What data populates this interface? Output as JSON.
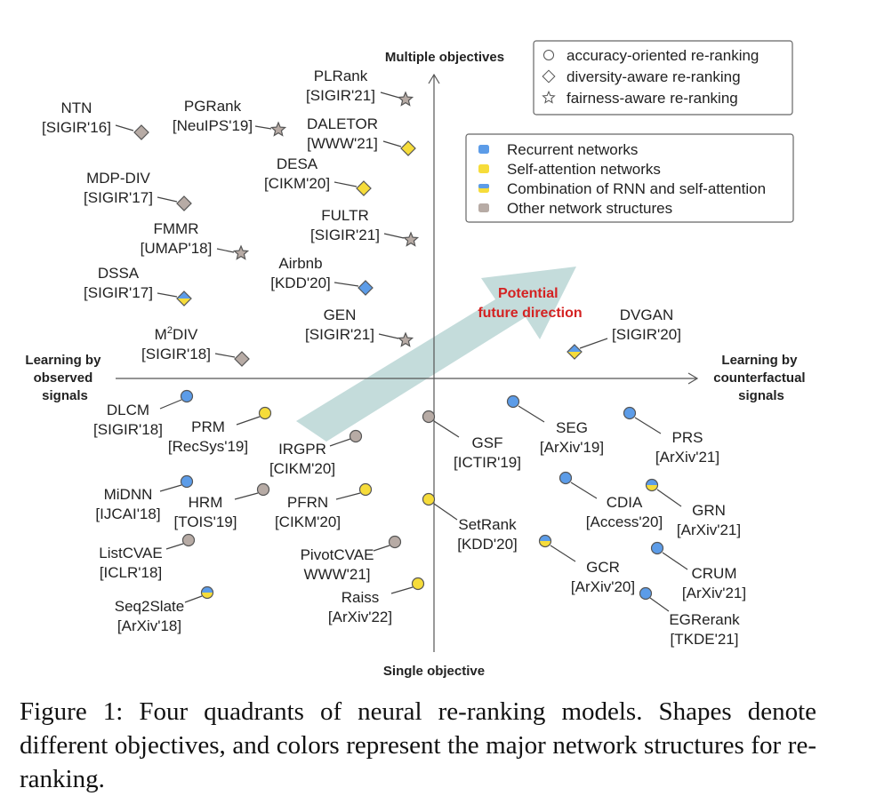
{
  "axes": {
    "top": "Multiple objectives",
    "bottom": "Single objective",
    "left": [
      "Learning by",
      "observed",
      "signals"
    ],
    "right": [
      "Learning by",
      "counterfactual",
      "signals"
    ]
  },
  "shape_legend": [
    {
      "shape": "circle",
      "label": "accuracy-oriented re-ranking"
    },
    {
      "shape": "diamond",
      "label": "diversity-aware re-ranking"
    },
    {
      "shape": "star",
      "label": "fairness-aware re-ranking"
    }
  ],
  "color_legend": [
    {
      "color": "blue",
      "label": "Recurrent networks"
    },
    {
      "color": "yellow",
      "label": "Self-attention networks"
    },
    {
      "color": "mixed",
      "label": "Combination of RNN and self-attention"
    },
    {
      "color": "gray",
      "label": "Other network structures"
    }
  ],
  "colors": {
    "blue": "#5c9ce8",
    "yellow": "#f6dc3a",
    "gray": "#b7aba5",
    "arrow": "#c4dcdb",
    "future": "#d42222"
  },
  "future_direction": [
    "Potential",
    "future direction"
  ],
  "models": [
    {
      "name": "NTN",
      "venue": "[SIGIR'16]",
      "shape": "diamond",
      "color": "gray"
    },
    {
      "name": "PGRank",
      "venue": "[NeuIPS'19]",
      "shape": "star",
      "color": "gray"
    },
    {
      "name": "PLRank",
      "venue": "[SIGIR'21]",
      "shape": "star",
      "color": "gray"
    },
    {
      "name": "DALETOR",
      "venue": "[WWW'21]",
      "shape": "diamond",
      "color": "yellow"
    },
    {
      "name": "DESA",
      "venue": "[CIKM'20]",
      "shape": "diamond",
      "color": "yellow"
    },
    {
      "name": "MDP-DIV",
      "venue": "[SIGIR'17]",
      "shape": "diamond",
      "color": "gray"
    },
    {
      "name": "FULTR",
      "venue": "[SIGIR'21]",
      "shape": "star",
      "color": "gray"
    },
    {
      "name": "FMMR",
      "venue": "[UMAP'18]",
      "shape": "star",
      "color": "gray"
    },
    {
      "name": "Airbnb",
      "venue": "[KDD'20]",
      "shape": "diamond",
      "color": "blue"
    },
    {
      "name": "DSSA",
      "venue": "[SIGIR'17]",
      "shape": "diamond",
      "color": "mixed"
    },
    {
      "name": "GEN",
      "venue": "[SIGIR'21]",
      "shape": "star",
      "color": "gray"
    },
    {
      "name": "M",
      "sup": "2",
      "name_rest": "DIV",
      "venue": "[SIGIR'18]",
      "shape": "diamond",
      "color": "gray"
    },
    {
      "name": "DVGAN",
      "venue": "[SIGIR'20]",
      "shape": "diamond",
      "color": "mixed"
    },
    {
      "name": "DLCM",
      "venue": "[SIGIR'18]",
      "shape": "circle",
      "color": "blue"
    },
    {
      "name": "PRM",
      "venue": "[RecSys'19]",
      "shape": "circle",
      "color": "yellow"
    },
    {
      "name": "IRGPR",
      "venue": "[CIKM'20]",
      "shape": "circle",
      "color": "gray"
    },
    {
      "name": "GSF",
      "venue": "[ICTIR'19]",
      "shape": "circle",
      "color": "gray"
    },
    {
      "name": "SEG",
      "venue": "[ArXiv'19]",
      "shape": "circle",
      "color": "blue"
    },
    {
      "name": "PRS",
      "venue": "[ArXiv'21]",
      "shape": "circle",
      "color": "blue"
    },
    {
      "name": "MiDNN",
      "venue": "[IJCAI'18]",
      "shape": "circle",
      "color": "blue"
    },
    {
      "name": "HRM",
      "venue": "[TOIS'19]",
      "shape": "circle",
      "color": "gray"
    },
    {
      "name": "PFRN",
      "venue": "[CIKM'20]",
      "shape": "circle",
      "color": "yellow"
    },
    {
      "name": "SetRank",
      "venue": "[KDD'20]",
      "shape": "circle",
      "color": "yellow"
    },
    {
      "name": "CDIA",
      "venue": "[Access'20]",
      "shape": "circle",
      "color": "blue"
    },
    {
      "name": "GRN",
      "venue": "[ArXiv'21]",
      "shape": "circle",
      "color": "mixed"
    },
    {
      "name": "ListCVAE",
      "venue": "[ICLR'18]",
      "shape": "circle",
      "color": "gray"
    },
    {
      "name": "PivotCVAE",
      "venue": "WWW'21]",
      "shape": "circle",
      "color": "gray"
    },
    {
      "name": "GCR",
      "venue": "[ArXiv'20]",
      "shape": "circle",
      "color": "mixed"
    },
    {
      "name": "CRUM",
      "venue": "[ArXiv'21]",
      "shape": "circle",
      "color": "blue"
    },
    {
      "name": "Raiss",
      "venue": "[ArXiv'22]",
      "shape": "circle",
      "color": "yellow"
    },
    {
      "name": "EGRerank",
      "venue": "[TKDE'21]",
      "shape": "circle",
      "color": "blue"
    },
    {
      "name": "Seq2Slate",
      "venue": "[ArXiv'18]",
      "shape": "circle",
      "color": "mixed"
    }
  ],
  "caption": "Figure 1: Four quadrants of neural re-ranking models. Shapes denote different objectives, and colors represent the major network structures for re-ranking."
}
